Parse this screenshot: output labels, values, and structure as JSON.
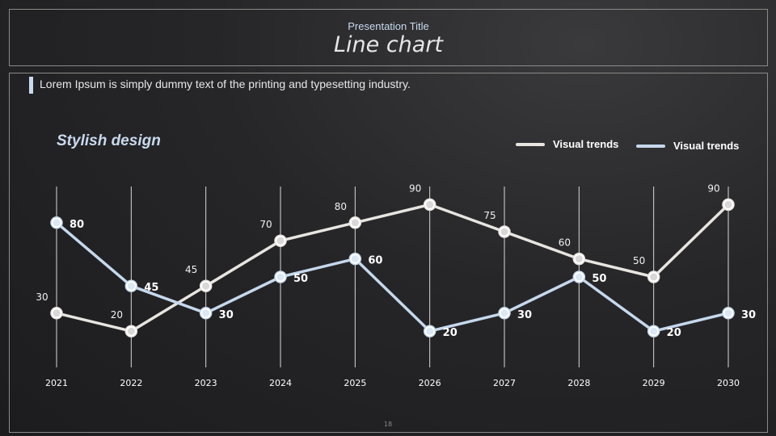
{
  "header": {
    "presentation_title": "Presentation Title",
    "title": "Line chart"
  },
  "description": "Lorem Ipsum is simply  dummy text of the printing  and typesetting industry.",
  "subtitle": "Stylish design",
  "page_number": "18",
  "colors": {
    "series1": "#e8e4e0",
    "series2": "#c5d8ec"
  },
  "chart_data": {
    "type": "line",
    "title": "Line chart",
    "categories": [
      "2021",
      "2022",
      "2023",
      "2024",
      "2025",
      "2026",
      "2027",
      "2028",
      "2029",
      "2030"
    ],
    "series": [
      {
        "name": "Visual trends",
        "values": [
          30,
          20,
          45,
          70,
          80,
          90,
          75,
          60,
          50,
          90
        ]
      },
      {
        "name": "Visual trends",
        "values": [
          80,
          45,
          30,
          50,
          60,
          20,
          30,
          50,
          20,
          30
        ]
      }
    ],
    "ylim": [
      0,
      100
    ],
    "xlabel": "",
    "ylabel": "",
    "grid": "vertical",
    "legend": "top-right"
  }
}
